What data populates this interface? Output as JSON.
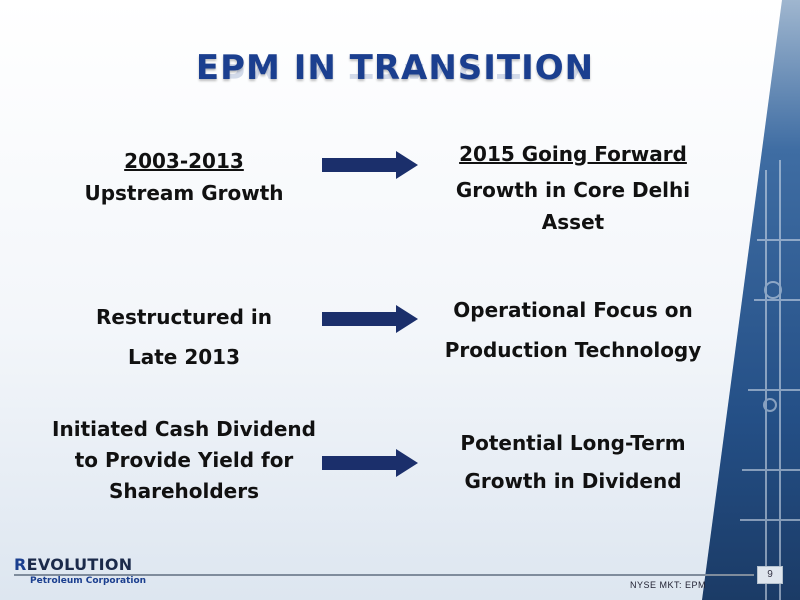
{
  "slide": {
    "title": "EPM IN TRANSITION",
    "rows": [
      {
        "left": [
          "2003-2013",
          "Upstream Growth"
        ],
        "right": [
          "2015 Going Forward",
          "Growth in Core Delhi",
          "Asset"
        ]
      },
      {
        "left": [
          "Restructured in",
          "Late 2013"
        ],
        "right": [
          "Operational Focus on",
          "Production Technology"
        ]
      },
      {
        "left": [
          "Initiated Cash Dividend",
          "to Provide Yield for",
          "Shareholders"
        ],
        "right": [
          "Potential Long-Term",
          "Growth in Dividend"
        ]
      }
    ],
    "footer": {
      "logo_name": "EVOLUTION",
      "logo_initial": "R",
      "logo_subtitle": "Petroleum Corporation",
      "ticker": "NYSE MKT: EPM",
      "page_number": "9"
    }
  },
  "colors": {
    "title": "#1b3f8f",
    "arrow": "#1b2f6b",
    "panel": "#2b5f9a"
  }
}
